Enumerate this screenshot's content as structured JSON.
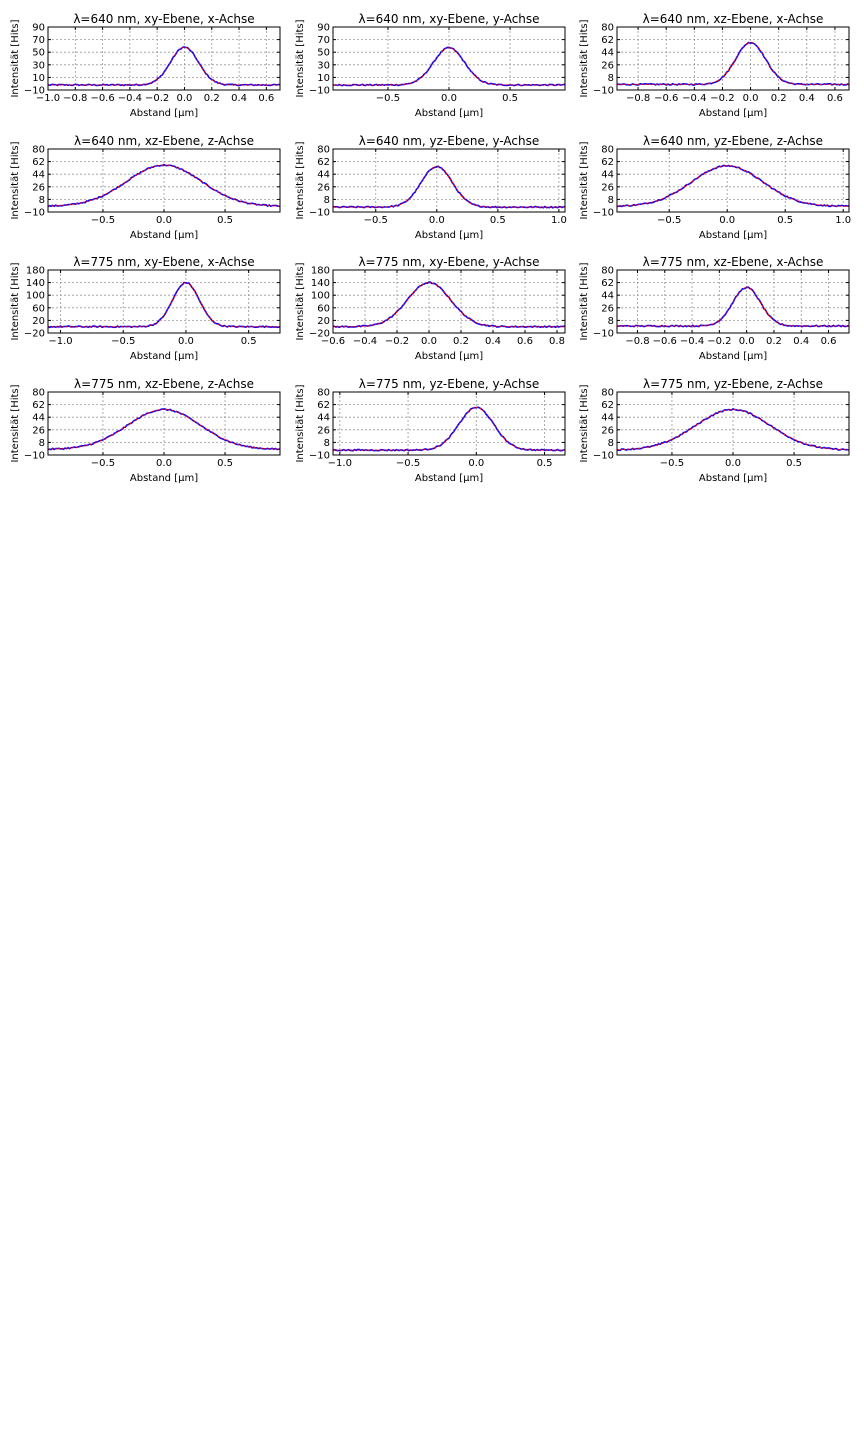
{
  "figure": {
    "colors": {
      "data": "#0000ff",
      "fit": "#ff0000",
      "grid": "#999999"
    },
    "xlabel": "Abstand [μm]",
    "ylabel": "Intensität [Hits]"
  },
  "chart_data": [
    {
      "type": "line",
      "title": "λ=640 nm, xy-Ebene, x-Achse",
      "xlabel": "Abstand [μm]",
      "ylabel": "Intensität [Hits]",
      "xlim": [
        -1.0,
        0.7
      ],
      "ylim": [
        -10,
        90
      ],
      "xticks": [
        "−1.0",
        "−0.8",
        "−0.6",
        "−0.4",
        "−0.2",
        "0.0",
        "0.2",
        "0.4",
        "0.6"
      ],
      "xtick_values": [
        -1.0,
        -0.8,
        -0.6,
        -0.4,
        -0.2,
        0.0,
        0.2,
        0.4,
        0.6
      ],
      "yticks": [
        -10,
        10,
        30,
        50,
        70,
        90
      ],
      "series": [
        {
          "baseline": -2,
          "peak": 58,
          "center": 0.0,
          "fwhm": 0.24
        }
      ],
      "grid": true
    },
    {
      "type": "line",
      "title": "λ=640 nm, xy-Ebene, y-Achse",
      "xlabel": "Abstand [μm]",
      "ylabel": "Intensität [Hits]",
      "xlim": [
        -0.95,
        0.95
      ],
      "ylim": [
        -10,
        90
      ],
      "xticks": [
        "−0.5",
        "0.0",
        "0.5"
      ],
      "xtick_values": [
        -0.5,
        0.0,
        0.5
      ],
      "yticks": [
        -10,
        10,
        30,
        50,
        70,
        90
      ],
      "series": [
        {
          "baseline": -2,
          "peak": 57,
          "center": 0.0,
          "fwhm": 0.3
        }
      ],
      "grid": true
    },
    {
      "type": "line",
      "title": "λ=640 nm, xz-Ebene, x-Achse",
      "xlabel": "Abstand [μm]",
      "ylabel": "Intensität [Hits]",
      "xlim": [
        -0.95,
        0.7
      ],
      "ylim": [
        -10,
        80
      ],
      "xticks": [
        "−0.8",
        "−0.6",
        "−0.4",
        "−0.2",
        "0.0",
        "0.2",
        "0.4",
        "0.6"
      ],
      "xtick_values": [
        -0.8,
        -0.6,
        -0.4,
        -0.2,
        0.0,
        0.2,
        0.4,
        0.6
      ],
      "yticks": [
        -10,
        8,
        26,
        44,
        62,
        80
      ],
      "series": [
        {
          "baseline": -2,
          "peak": 58,
          "center": 0.0,
          "fwhm": 0.25
        }
      ],
      "grid": true
    },
    {
      "type": "line",
      "title": "λ=640 nm, xz-Ebene, z-Achse",
      "xlabel": "Abstand [μm]",
      "ylabel": "Intensität [Hits]",
      "xlim": [
        -0.95,
        0.95
      ],
      "ylim": [
        -10,
        80
      ],
      "xticks": [
        "−0.5",
        "0.0",
        "0.5"
      ],
      "xtick_values": [
        -0.5,
        0.0,
        0.5
      ],
      "yticks": [
        -10,
        8,
        26,
        44,
        62,
        80
      ],
      "series": [
        {
          "baseline": -2,
          "peak": 57,
          "center": 0.0,
          "fwhm": 0.72
        }
      ],
      "grid": true
    },
    {
      "type": "line",
      "title": "λ=640 nm, yz-Ebene, y-Achse",
      "xlabel": "Abstand [μm]",
      "ylabel": "Intensität [Hits]",
      "xlim": [
        -0.85,
        1.05
      ],
      "ylim": [
        -10,
        80
      ],
      "xticks": [
        "−0.5",
        "0.0",
        "0.5",
        "1.0"
      ],
      "xtick_values": [
        -0.5,
        0.0,
        0.5,
        1.0
      ],
      "yticks": [
        -10,
        8,
        26,
        44,
        62,
        80
      ],
      "series": [
        {
          "baseline": -3,
          "peak": 55,
          "center": 0.0,
          "fwhm": 0.3
        }
      ],
      "grid": true
    },
    {
      "type": "line",
      "title": "λ=640 nm, yz-Ebene, z-Achse",
      "xlabel": "Abstand [μm]",
      "ylabel": "Intensität [Hits]",
      "xlim": [
        -0.95,
        1.05
      ],
      "ylim": [
        -10,
        80
      ],
      "xticks": [
        "−0.5",
        "0.0",
        "0.5",
        "1.0"
      ],
      "xtick_values": [
        -0.5,
        0.0,
        0.5,
        1.0
      ],
      "yticks": [
        -10,
        8,
        26,
        44,
        62,
        80
      ],
      "series": [
        {
          "baseline": -2,
          "peak": 56,
          "center": 0.0,
          "fwhm": 0.72
        }
      ],
      "grid": true
    },
    {
      "type": "line",
      "title": "λ=775 nm, xy-Ebene, x-Achse",
      "xlabel": "Abstand [μm]",
      "ylabel": "Intensität [Hits]",
      "xlim": [
        -1.1,
        0.75
      ],
      "ylim": [
        -20,
        180
      ],
      "xticks": [
        "−1.0",
        "−0.5",
        "0.0",
        "0.5"
      ],
      "xtick_values": [
        -1.0,
        -0.5,
        0.0,
        0.5
      ],
      "yticks": [
        -20,
        20,
        60,
        100,
        140,
        180
      ],
      "series": [
        {
          "baseline": 0,
          "peak": 140,
          "center": 0.0,
          "fwhm": 0.25
        }
      ],
      "grid": true
    },
    {
      "type": "line",
      "title": "λ=775 nm, xy-Ebene, y-Achse",
      "xlabel": "Abstand [μm]",
      "ylabel": "Intensität [Hits]",
      "xlim": [
        -0.6,
        0.85
      ],
      "ylim": [
        -20,
        180
      ],
      "xticks": [
        "−0.6",
        "−0.4",
        "−0.2",
        "0.0",
        "0.2",
        "0.4",
        "0.6",
        "0.8"
      ],
      "xtick_values": [
        -0.6,
        -0.4,
        -0.2,
        0.0,
        0.2,
        0.4,
        0.6,
        0.8
      ],
      "yticks": [
        -20,
        20,
        60,
        100,
        140,
        180
      ],
      "series": [
        {
          "baseline": 0,
          "peak": 140,
          "center": 0.0,
          "fwhm": 0.32
        }
      ],
      "grid": true
    },
    {
      "type": "line",
      "title": "λ=775 nm, xz-Ebene, x-Achse",
      "xlabel": "Abstand [μm]",
      "ylabel": "Intensität [Hits]",
      "xlim": [
        -0.95,
        0.75
      ],
      "ylim": [
        -10,
        80
      ],
      "xticks": [
        "−0.8",
        "−0.6",
        "−0.4",
        "−0.2",
        "0.0",
        "0.2",
        "0.4",
        "0.6"
      ],
      "xtick_values": [
        -0.8,
        -0.6,
        -0.4,
        -0.2,
        0.0,
        0.2,
        0.4,
        0.6
      ],
      "yticks": [
        -10,
        8,
        26,
        44,
        62,
        80
      ],
      "series": [
        {
          "baseline": 0,
          "peak": 55,
          "center": 0.0,
          "fwhm": 0.24
        }
      ],
      "grid": true
    },
    {
      "type": "line",
      "title": "λ=775 nm, xz-Ebene, z-Achse",
      "xlabel": "Abstand [μm]",
      "ylabel": "Intensität [Hits]",
      "xlim": [
        -0.95,
        0.95
      ],
      "ylim": [
        -10,
        80
      ],
      "xticks": [
        "−0.5",
        "0.0",
        "0.5"
      ],
      "xtick_values": [
        -0.5,
        0.0,
        0.5
      ],
      "yticks": [
        -10,
        8,
        26,
        44,
        62,
        80
      ],
      "series": [
        {
          "baseline": -2,
          "peak": 55,
          "center": 0.0,
          "fwhm": 0.7
        }
      ],
      "grid": true
    },
    {
      "type": "line",
      "title": "λ=775 nm, yz-Ebene, y-Achse",
      "xlabel": "Abstand [μm]",
      "ylabel": "Intensität [Hits]",
      "xlim": [
        -1.05,
        0.65
      ],
      "ylim": [
        -10,
        80
      ],
      "xticks": [
        "−1.0",
        "−0.5",
        "0.0",
        "0.5"
      ],
      "xtick_values": [
        -1.0,
        -0.5,
        0.0,
        0.5
      ],
      "yticks": [
        -10,
        8,
        26,
        44,
        62,
        80
      ],
      "series": [
        {
          "baseline": -3,
          "peak": 58,
          "center": 0.0,
          "fwhm": 0.3
        }
      ],
      "grid": true
    },
    {
      "type": "line",
      "title": "λ=775 nm, yz-Ebene, z-Achse",
      "xlabel": "Abstand [μm]",
      "ylabel": "Intensität [Hits]",
      "xlim": [
        -0.95,
        0.95
      ],
      "ylim": [
        -10,
        80
      ],
      "xticks": [
        "−0.5",
        "0.0",
        "0.5"
      ],
      "xtick_values": [
        -0.5,
        0.0,
        0.5
      ],
      "yticks": [
        -10,
        8,
        26,
        44,
        62,
        80
      ],
      "series": [
        {
          "baseline": -3,
          "peak": 55,
          "center": 0.0,
          "fwhm": 0.72
        }
      ],
      "grid": true
    }
  ]
}
